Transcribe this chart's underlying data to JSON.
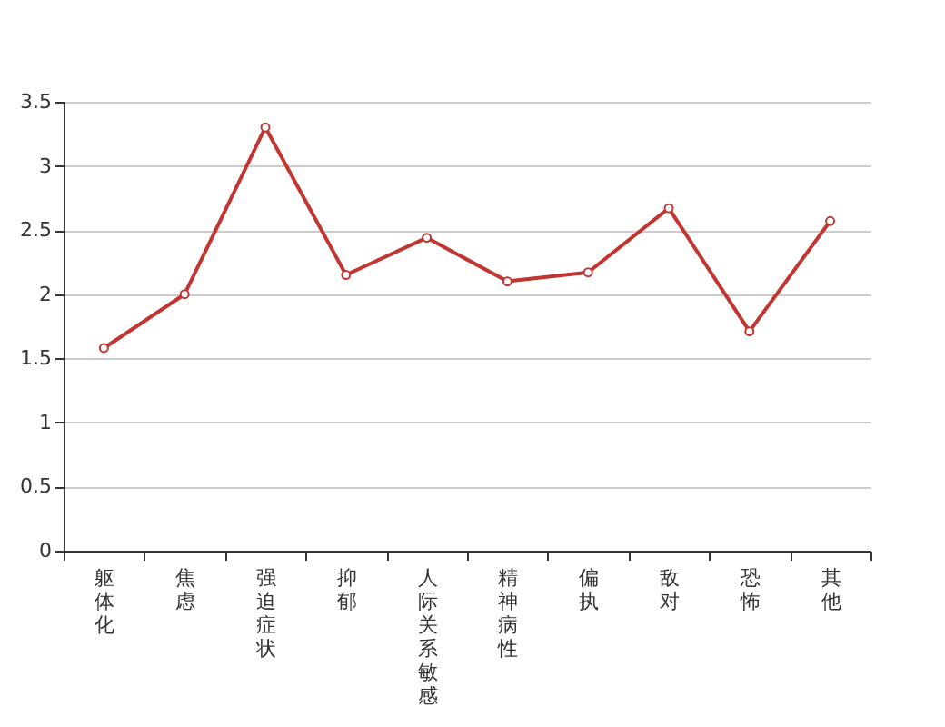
{
  "chart_data": {
    "type": "line",
    "categories": [
      "躯体化",
      "焦虑",
      "强迫症状",
      "抑郁",
      "人际关系敏感",
      "精神病性",
      "偏执",
      "敌对",
      "恐怖",
      "其他"
    ],
    "series": [
      {
        "color": "#c23531",
        "values": [
          1.58,
          2.0,
          3.3,
          2.15,
          2.44,
          2.1,
          2.17,
          2.67,
          1.71,
          2.57
        ]
      }
    ],
    "ylim": [
      0,
      3.5
    ],
    "yticks": [
      0,
      0.5,
      1,
      1.5,
      2,
      2.5,
      3,
      3.5
    ],
    "grid": "y",
    "marker": "circle",
    "line_style": "solid"
  }
}
